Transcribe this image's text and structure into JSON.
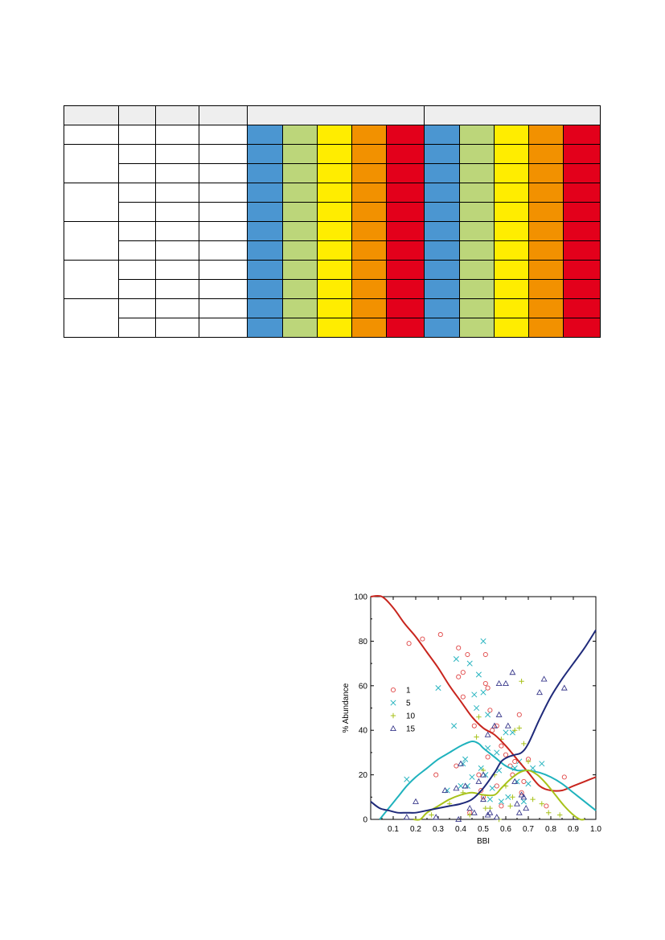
{
  "table": {
    "colors": {
      "blue": "#4b96d1",
      "green": "#bcd67a",
      "yellow": "#ffed00",
      "orange": "#f29100",
      "red": "#e3001b",
      "header_fill": "#eeeeee"
    },
    "color_sequence": [
      "blue",
      "green",
      "yellow",
      "orange",
      "red"
    ],
    "column_groups": 2,
    "data_rows": 11,
    "merged_groups": 5
  },
  "chart_data": {
    "type": "scatter",
    "title": "",
    "xlabel": "BBI",
    "ylabel": "% Abundance",
    "xlim": [
      0,
      1.0
    ],
    "ylim": [
      0,
      100
    ],
    "x_ticks": [
      "0.1",
      "0.2",
      "0.3",
      "0.4",
      "0.5",
      "0.6",
      "0.7",
      "0.8",
      "0.9",
      "1.0"
    ],
    "y_ticks": [
      "0",
      "20",
      "40",
      "60",
      "80",
      "100"
    ],
    "legend_position": "left",
    "series": [
      {
        "name": "1",
        "marker": "circle",
        "color": "#e04646",
        "points": [
          [
            0.17,
            79
          ],
          [
            0.23,
            81
          ],
          [
            0.29,
            20
          ],
          [
            0.31,
            83
          ],
          [
            0.38,
            24
          ],
          [
            0.39,
            77
          ],
          [
            0.39,
            64
          ],
          [
            0.41,
            55
          ],
          [
            0.41,
            66
          ],
          [
            0.43,
            74
          ],
          [
            0.44,
            3
          ],
          [
            0.46,
            42
          ],
          [
            0.48,
            20
          ],
          [
            0.49,
            13
          ],
          [
            0.5,
            10
          ],
          [
            0.51,
            74
          ],
          [
            0.51,
            61
          ],
          [
            0.52,
            59
          ],
          [
            0.52,
            28
          ],
          [
            0.53,
            49
          ],
          [
            0.54,
            40
          ],
          [
            0.56,
            42
          ],
          [
            0.56,
            15
          ],
          [
            0.58,
            33
          ],
          [
            0.58,
            6
          ],
          [
            0.6,
            29
          ],
          [
            0.62,
            24
          ],
          [
            0.63,
            20
          ],
          [
            0.64,
            26
          ],
          [
            0.66,
            47
          ],
          [
            0.67,
            12
          ],
          [
            0.68,
            17
          ],
          [
            0.7,
            27
          ],
          [
            0.78,
            6
          ],
          [
            0.86,
            19
          ]
        ]
      },
      {
        "name": "5",
        "marker": "x",
        "color": "#2ab5c0",
        "points": [
          [
            0.16,
            18
          ],
          [
            0.3,
            59
          ],
          [
            0.34,
            13
          ],
          [
            0.37,
            42
          ],
          [
            0.38,
            72
          ],
          [
            0.4,
            15
          ],
          [
            0.41,
            25
          ],
          [
            0.42,
            27
          ],
          [
            0.43,
            15
          ],
          [
            0.44,
            70
          ],
          [
            0.45,
            19
          ],
          [
            0.46,
            56
          ],
          [
            0.47,
            50
          ],
          [
            0.48,
            65
          ],
          [
            0.49,
            23
          ],
          [
            0.5,
            80
          ],
          [
            0.5,
            57
          ],
          [
            0.51,
            20
          ],
          [
            0.52,
            47
          ],
          [
            0.52,
            32
          ],
          [
            0.53,
            9
          ],
          [
            0.54,
            14
          ],
          [
            0.56,
            30
          ],
          [
            0.57,
            22
          ],
          [
            0.58,
            8
          ],
          [
            0.6,
            39
          ],
          [
            0.61,
            10
          ],
          [
            0.63,
            39
          ],
          [
            0.64,
            23
          ],
          [
            0.65,
            17
          ],
          [
            0.66,
            26
          ],
          [
            0.68,
            8
          ],
          [
            0.7,
            16
          ],
          [
            0.72,
            23
          ],
          [
            0.76,
            25
          ]
        ]
      },
      {
        "name": "10",
        "marker": "plus",
        "color": "#a8c21a",
        "points": [
          [
            0.27,
            2
          ],
          [
            0.35,
            7
          ],
          [
            0.41,
            12
          ],
          [
            0.44,
            2
          ],
          [
            0.47,
            37
          ],
          [
            0.48,
            46
          ],
          [
            0.5,
            22
          ],
          [
            0.51,
            5
          ],
          [
            0.53,
            5
          ],
          [
            0.55,
            20
          ],
          [
            0.57,
            0
          ],
          [
            0.58,
            36
          ],
          [
            0.6,
            15
          ],
          [
            0.62,
            6
          ],
          [
            0.63,
            10
          ],
          [
            0.64,
            40
          ],
          [
            0.66,
            41
          ],
          [
            0.67,
            62
          ],
          [
            0.68,
            34
          ],
          [
            0.7,
            26
          ],
          [
            0.72,
            9
          ],
          [
            0.76,
            7
          ],
          [
            0.79,
            3
          ],
          [
            0.84,
            2
          ]
        ]
      },
      {
        "name": "15",
        "marker": "triangle",
        "color": "#3a3a8c",
        "points": [
          [
            0.16,
            1
          ],
          [
            0.2,
            8
          ],
          [
            0.29,
            1
          ],
          [
            0.33,
            13
          ],
          [
            0.38,
            14
          ],
          [
            0.39,
            0
          ],
          [
            0.4,
            25
          ],
          [
            0.42,
            15
          ],
          [
            0.44,
            5
          ],
          [
            0.46,
            3
          ],
          [
            0.48,
            17
          ],
          [
            0.5,
            20
          ],
          [
            0.5,
            9
          ],
          [
            0.52,
            38
          ],
          [
            0.52,
            2
          ],
          [
            0.53,
            3
          ],
          [
            0.55,
            42
          ],
          [
            0.56,
            1
          ],
          [
            0.57,
            61
          ],
          [
            0.57,
            47
          ],
          [
            0.6,
            61
          ],
          [
            0.61,
            42
          ],
          [
            0.63,
            66
          ],
          [
            0.64,
            17
          ],
          [
            0.65,
            7
          ],
          [
            0.66,
            3
          ],
          [
            0.67,
            11
          ],
          [
            0.68,
            10
          ],
          [
            0.69,
            5
          ],
          [
            0.75,
            57
          ],
          [
            0.77,
            63
          ],
          [
            0.86,
            59
          ]
        ]
      }
    ],
    "curves": [
      {
        "series": "1",
        "color": "#c8251e",
        "x": [
          0.0,
          0.05,
          0.1,
          0.15,
          0.2,
          0.25,
          0.3,
          0.35,
          0.4,
          0.45,
          0.5,
          0.55,
          0.6,
          0.65,
          0.7,
          0.75,
          0.8,
          0.85,
          0.9,
          0.95,
          1.0
        ],
        "y": [
          100,
          100,
          95,
          88,
          82,
          75,
          68,
          60,
          53,
          46,
          41,
          38,
          33,
          27,
          21,
          15,
          13,
          13,
          15,
          17,
          19
        ]
      },
      {
        "series": "5",
        "color": "#1fb2bd",
        "x": [
          0.04,
          0.08,
          0.12,
          0.16,
          0.2,
          0.25,
          0.3,
          0.35,
          0.4,
          0.45,
          0.48,
          0.5,
          0.55,
          0.6,
          0.65,
          0.7,
          0.75,
          0.8,
          0.85,
          0.9,
          0.95,
          1.0
        ],
        "y": [
          0,
          5,
          10,
          15,
          19,
          23,
          27,
          30,
          33,
          35,
          34,
          32,
          28,
          24,
          22,
          22,
          21,
          19,
          16,
          12,
          8,
          4
        ]
      },
      {
        "series": "10",
        "color": "#a8c21a",
        "x": [
          0.19,
          0.22,
          0.25,
          0.3,
          0.35,
          0.4,
          0.45,
          0.5,
          0.55,
          0.58,
          0.62,
          0.66,
          0.7,
          0.74,
          0.78,
          0.82,
          0.86,
          0.9,
          0.93,
          0.95
        ],
        "y": [
          0,
          0,
          3,
          6,
          9,
          11,
          12,
          11,
          11,
          14,
          18,
          21,
          22,
          20,
          16,
          11,
          6,
          2,
          0,
          0
        ]
      },
      {
        "series": "15",
        "color": "#1f2a7a",
        "x": [
          0.0,
          0.04,
          0.08,
          0.12,
          0.16,
          0.2,
          0.25,
          0.3,
          0.35,
          0.4,
          0.45,
          0.5,
          0.55,
          0.58,
          0.61,
          0.64,
          0.67,
          0.7,
          0.75,
          0.8,
          0.85,
          0.9,
          0.95,
          1.0
        ],
        "y": [
          8,
          5,
          4,
          3,
          3,
          3,
          4,
          5,
          6,
          7,
          9,
          14,
          21,
          26,
          28,
          29,
          30,
          34,
          45,
          55,
          63,
          70,
          77,
          85
        ]
      }
    ]
  }
}
